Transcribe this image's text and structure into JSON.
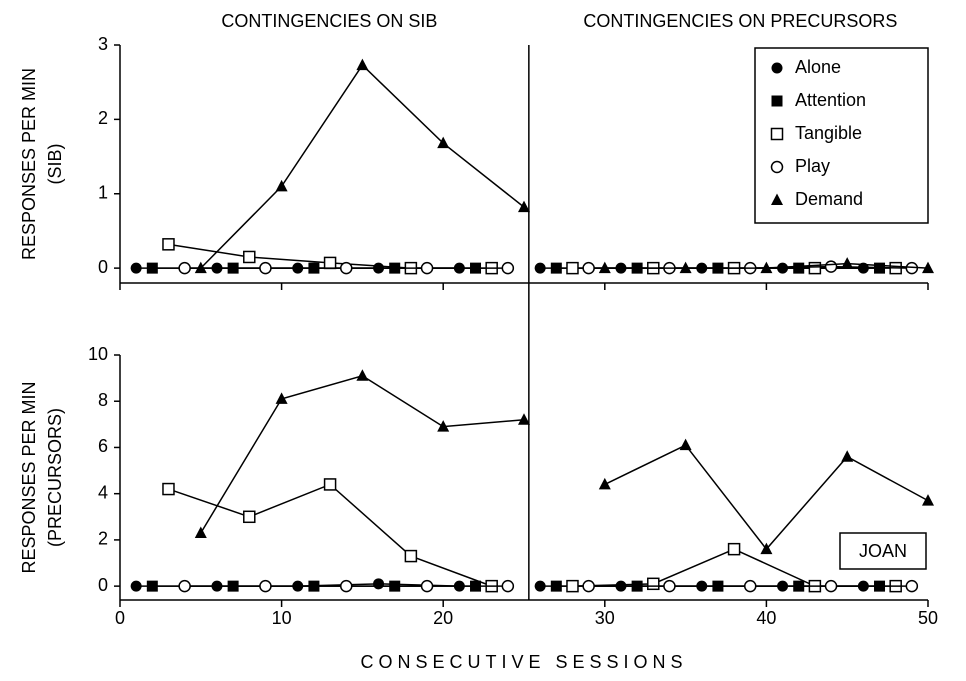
{
  "chart_data": [
    {
      "type": "line",
      "phase_labels": [
        "CONTINGENCIES ON SIB",
        "CONTINGENCIES ON PRECURSORS"
      ],
      "phase_change": 25.3,
      "ylabel": [
        "RESPONSES PER MIN",
        "(SIB)"
      ],
      "xlim": [
        0,
        50
      ],
      "xticks": [
        0,
        10,
        20,
        30,
        40,
        50
      ],
      "ylim": [
        -0.2,
        3
      ],
      "yticks": [
        0,
        1,
        2,
        3
      ],
      "legend": "upper right",
      "series": [
        {
          "name": "Alone",
          "color": "#000",
          "marker": "circle",
          "x": [
            1,
            6,
            11,
            16,
            21,
            26,
            31,
            36,
            41,
            46
          ],
          "values": [
            0,
            0,
            0,
            0,
            0,
            0,
            0,
            0,
            0,
            0
          ]
        },
        {
          "name": "Attention",
          "color": "#000",
          "marker": "square",
          "x": [
            2,
            7,
            12,
            17,
            22,
            27,
            32,
            37,
            42,
            47
          ],
          "values": [
            0,
            0,
            0,
            0,
            0,
            0,
            0,
            0,
            0,
            0
          ]
        },
        {
          "name": "Tangible",
          "color": "#000",
          "marker": "open-square",
          "x": [
            3,
            8,
            13,
            18,
            23,
            28,
            33,
            38,
            43,
            48
          ],
          "values": [
            0.32,
            0.15,
            0.07,
            0,
            0,
            0,
            0,
            0,
            0,
            0
          ]
        },
        {
          "name": "Play",
          "color": "#000",
          "marker": "open-circle",
          "x": [
            4,
            9,
            14,
            19,
            24,
            29,
            34,
            39,
            44,
            49
          ],
          "values": [
            0,
            0,
            0,
            0,
            0,
            0,
            0,
            0,
            0.02,
            0
          ]
        },
        {
          "name": "Demand",
          "color": "#000",
          "marker": "triangle",
          "x": [
            5,
            10,
            15,
            20,
            25,
            30,
            35,
            40,
            45,
            50
          ],
          "values": [
            0,
            1.1,
            2.73,
            1.68,
            0.82,
            0,
            0,
            0,
            0.06,
            0
          ]
        }
      ]
    },
    {
      "type": "line",
      "ylabel": [
        "RESPONSES PER MIN",
        "(PRECURSORS)"
      ],
      "xlabel": "CONSECUTIVE SESSIONS",
      "annotation": "JOAN",
      "phase_change": 25.3,
      "xlim": [
        0,
        50
      ],
      "xticks": [
        0,
        10,
        20,
        30,
        40,
        50
      ],
      "ylim": [
        -0.6,
        10
      ],
      "yticks": [
        0,
        2,
        4,
        6,
        8,
        10
      ],
      "series": [
        {
          "name": "Alone",
          "color": "#000",
          "marker": "circle",
          "x": [
            1,
            6,
            11,
            16,
            21,
            26,
            31,
            36,
            41,
            46
          ],
          "values": [
            0,
            0,
            0,
            0.1,
            0,
            0,
            0,
            0,
            0,
            0
          ]
        },
        {
          "name": "Attention",
          "color": "#000",
          "marker": "square",
          "x": [
            2,
            7,
            12,
            17,
            22,
            27,
            32,
            37,
            42,
            47
          ],
          "values": [
            0,
            0,
            0,
            0,
            0,
            0,
            0,
            0,
            0,
            0
          ]
        },
        {
          "name": "Tangible",
          "color": "#000",
          "marker": "open-square",
          "x": [
            3,
            8,
            13,
            18,
            23,
            28,
            33,
            38,
            43,
            48
          ],
          "values": [
            4.2,
            3.0,
            4.4,
            1.3,
            0,
            0,
            0.1,
            1.6,
            0,
            0
          ]
        },
        {
          "name": "Play",
          "color": "#000",
          "marker": "open-circle",
          "x": [
            4,
            9,
            14,
            19,
            24,
            29,
            34,
            39,
            44,
            49
          ],
          "values": [
            0,
            0,
            0,
            0,
            0,
            0,
            0,
            0,
            0,
            0
          ]
        },
        {
          "name": "Demand",
          "color": "#000",
          "marker": "triangle",
          "x": [
            5,
            10,
            15,
            20,
            25,
            30,
            35,
            40,
            45,
            50
          ],
          "values": [
            2.3,
            8.1,
            9.1,
            6.9,
            7.2,
            4.4,
            6.1,
            1.6,
            5.6,
            3.7
          ]
        }
      ]
    }
  ]
}
